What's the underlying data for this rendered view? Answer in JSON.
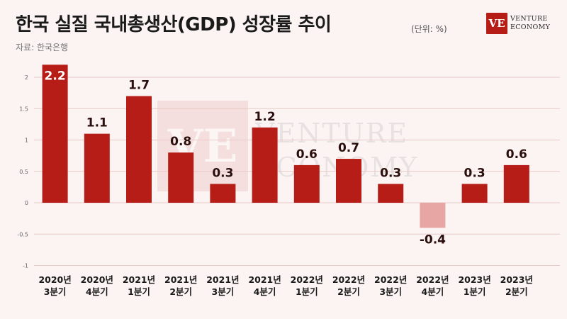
{
  "header": {
    "title": "한국 실질 국내총생산(GDP) 성장률 추이",
    "unit": "(단위: %)",
    "source": "자료: 한국은행",
    "logo_line1": "VENTURE",
    "logo_line2": "ECONOMY",
    "logo_mark": "VE"
  },
  "chart_data": {
    "type": "bar",
    "title": "한국 실질 국내총생산(GDP) 성장률 추이",
    "unit": "(단위: %)",
    "categories": [
      [
        "2020년",
        "3분기"
      ],
      [
        "2020년",
        "4분기"
      ],
      [
        "2021년",
        "1분기"
      ],
      [
        "2021년",
        "2분기"
      ],
      [
        "2021년",
        "3분기"
      ],
      [
        "2021년",
        "4분기"
      ],
      [
        "2022년",
        "1분기"
      ],
      [
        "2022년",
        "2분기"
      ],
      [
        "2022년",
        "3분기"
      ],
      [
        "2022년",
        "4분기"
      ],
      [
        "2023년",
        "1분기"
      ],
      [
        "2023년",
        "2분기"
      ]
    ],
    "values": [
      2.2,
      1.1,
      1.7,
      0.8,
      0.3,
      1.2,
      0.6,
      0.7,
      0.3,
      -0.4,
      0.3,
      0.6
    ],
    "value_labels": [
      "2.2",
      "1.1",
      "1.7",
      "0.8",
      "0.3",
      "1.2",
      "0.6",
      "0.7",
      "0.3",
      "-0.4",
      "0.3",
      "0.6"
    ],
    "yticks": [
      2,
      1.5,
      1,
      0.5,
      0,
      -0.5,
      -1
    ],
    "ytick_labels": [
      "2",
      "1.5",
      "1",
      "0.5",
      "0",
      "-0.5",
      "-1"
    ],
    "ylim": [
      -1,
      2.2
    ],
    "grid": true,
    "legend": "none",
    "colors": {
      "positive": "#b61d16",
      "negative": "#e7a5a3",
      "grid": "#e8c9c6"
    }
  }
}
